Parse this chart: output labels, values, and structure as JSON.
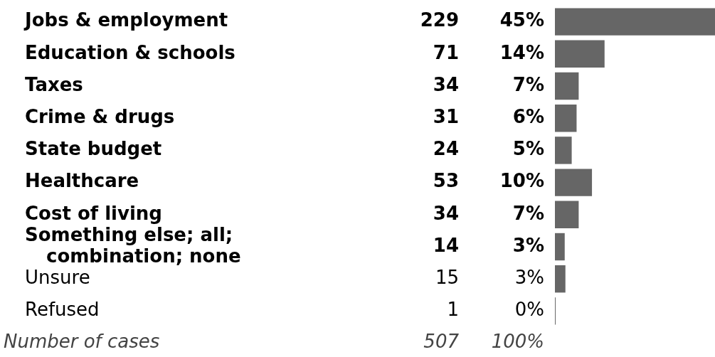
{
  "chart_data": {
    "type": "bar",
    "orientation": "horizontal",
    "categories": [
      "Jobs & employment",
      "Education & schools",
      "Taxes",
      "Crime & drugs",
      "State budget",
      "Healthcare",
      "Cost of living",
      "Something else; all; combination; none",
      "Unsure",
      "Refused"
    ],
    "values": [
      229,
      71,
      34,
      31,
      24,
      53,
      34,
      14,
      15,
      1
    ],
    "color": "#666666",
    "xlim": [
      0,
      229
    ],
    "tick_labels": false,
    "legend": false,
    "data_labels": true,
    "annotations": [
      "45%",
      "14%",
      "7%",
      "6%",
      "5%",
      "10%",
      "7%",
      "3%",
      "3%",
      "0%",
      "Number of cases",
      "507",
      "100%"
    ]
  }
}
